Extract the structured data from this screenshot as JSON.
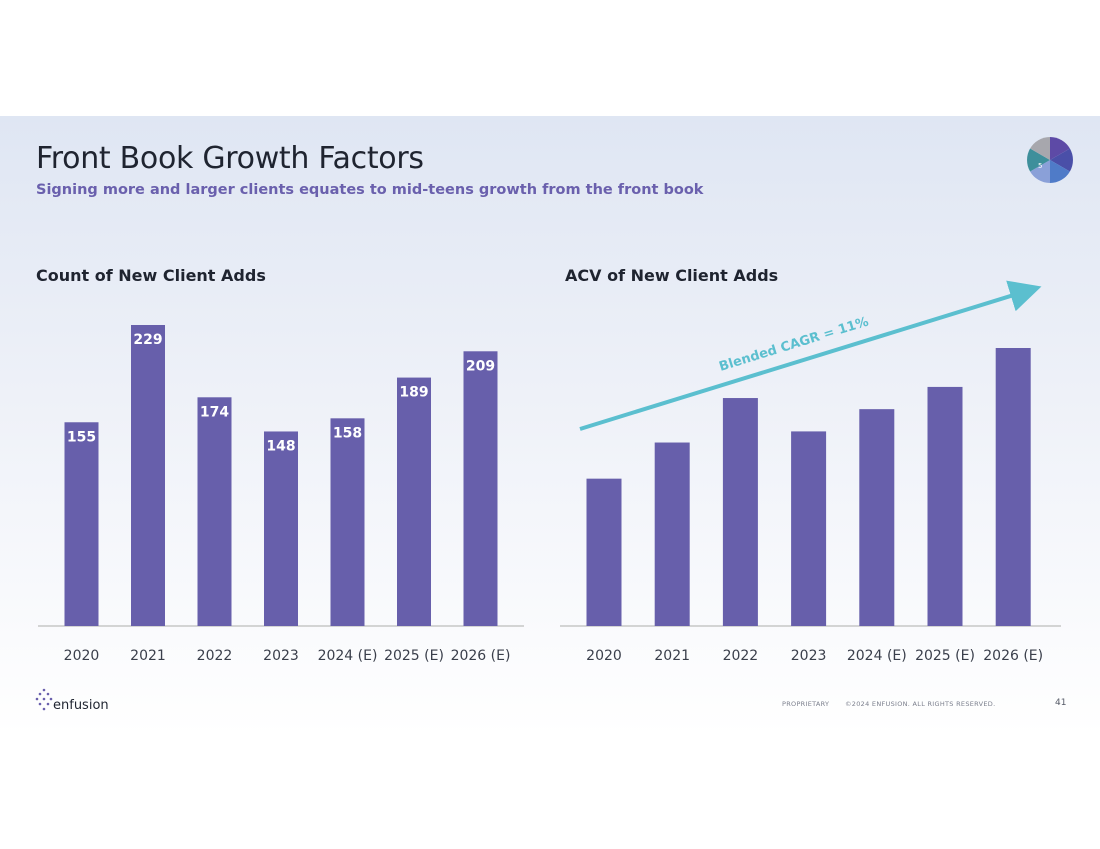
{
  "header": {
    "title": "Front Book Growth Factors",
    "subtitle": "Signing more and larger clients equates to mid-teens growth from the front book",
    "badge_number": "5"
  },
  "colors": {
    "bar": "#675fab",
    "arrow": "#5bbfcf",
    "axis": "#bdbdbd",
    "label": "#ffffff",
    "tick": "#3a3f4b"
  },
  "chart_data": [
    {
      "type": "bar",
      "title": "Count of New Client Adds",
      "categories": [
        "2020",
        "2021",
        "2022",
        "2023",
        "2024 (E)",
        "2025 (E)",
        "2026 (E)"
      ],
      "values": [
        155,
        229,
        174,
        148,
        158,
        189,
        209
      ],
      "data_labels": [
        "155",
        "229",
        "174",
        "148",
        "158",
        "189",
        "209"
      ],
      "xlabel": "",
      "ylabel": "",
      "ylim": [
        0,
        229
      ],
      "grid": false,
      "legend": "none"
    },
    {
      "type": "bar",
      "title": "ACV of New Client Adds",
      "categories": [
        "2020",
        "2021",
        "2022",
        "2023",
        "2024 (E)",
        "2025 (E)",
        "2026 (E)"
      ],
      "values": [
        53,
        66,
        82,
        70,
        78,
        86,
        100
      ],
      "annotation": "Blended CAGR = 11%",
      "xlabel": "",
      "ylabel": "",
      "ylim": [
        0,
        100
      ],
      "grid": false,
      "legend": "none"
    }
  ],
  "footer": {
    "logo": "enfusion",
    "proprietary": "PROPRIETARY",
    "copyright": "©2024 ENFUSION. ALL RIGHTS RESERVED.",
    "page": "41"
  }
}
